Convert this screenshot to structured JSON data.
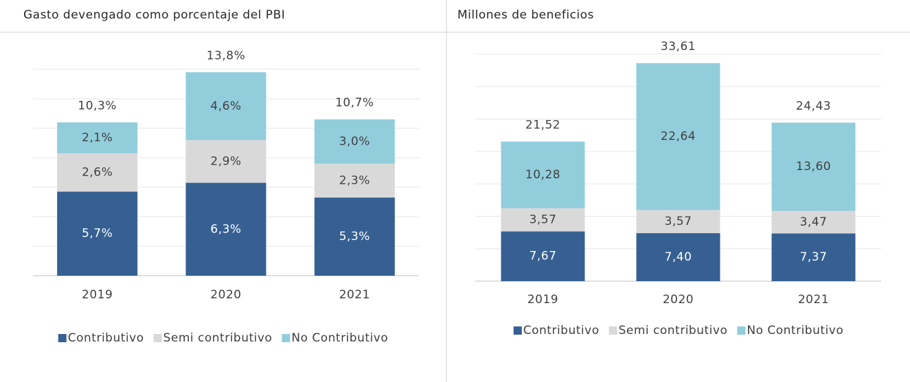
{
  "chart_data": [
    {
      "type": "bar",
      "stacked": true,
      "title": "Gasto devengado como porcentaje del PBI",
      "categories": [
        "2019",
        "2020",
        "2021"
      ],
      "series": [
        {
          "name": "Contributivo",
          "color": "#366092",
          "label_color": "#ffffff",
          "values": [
            5.7,
            6.3,
            5.3
          ],
          "value_labels": [
            "5,7%",
            "6,3%",
            "5,3%"
          ]
        },
        {
          "name": "Semi contributivo",
          "color": "#d9d9d9",
          "label_color": "#404040",
          "values": [
            2.6,
            2.9,
            2.3
          ],
          "value_labels": [
            "2,6%",
            "2,9%",
            "2,3%"
          ]
        },
        {
          "name": "No Contributivo",
          "color": "#92cddc",
          "label_color": "#404040",
          "values": [
            2.1,
            4.6,
            3.0
          ],
          "value_labels": [
            "2,1%",
            "4,6%",
            "3,0%"
          ]
        }
      ],
      "totals": [
        10.3,
        13.8,
        10.7
      ],
      "total_labels": [
        "10,3%",
        "13,8%",
        "10,7%"
      ],
      "ylim": [
        0,
        14
      ],
      "yticks": [
        0,
        2,
        4,
        6,
        8,
        10,
        12,
        14
      ],
      "grid": true,
      "legend": "bottom"
    },
    {
      "type": "bar",
      "stacked": true,
      "title": "Millones de beneficios",
      "categories": [
        "2019",
        "2020",
        "2021"
      ],
      "series": [
        {
          "name": "Contributivo",
          "color": "#366092",
          "label_color": "#ffffff",
          "values": [
            7.67,
            7.4,
            7.37
          ],
          "value_labels": [
            "7,67",
            "7,40",
            "7,37"
          ]
        },
        {
          "name": "Semi contributivo",
          "color": "#d9d9d9",
          "label_color": "#404040",
          "values": [
            3.57,
            3.57,
            3.47
          ],
          "value_labels": [
            "3,57",
            "3,57",
            "3,47"
          ]
        },
        {
          "name": "No Contributivo",
          "color": "#92cddc",
          "label_color": "#404040",
          "values": [
            10.28,
            22.64,
            13.6
          ],
          "value_labels": [
            "10,28",
            "22,64",
            "13,60"
          ]
        }
      ],
      "totals": [
        21.52,
        33.61,
        24.43
      ],
      "total_labels": [
        "21,52",
        "33,61",
        "24,43"
      ],
      "ylim": [
        0,
        35
      ],
      "yticks": [
        0,
        5,
        10,
        15,
        20,
        25,
        30,
        35
      ],
      "grid": true,
      "legend": "bottom"
    }
  ]
}
